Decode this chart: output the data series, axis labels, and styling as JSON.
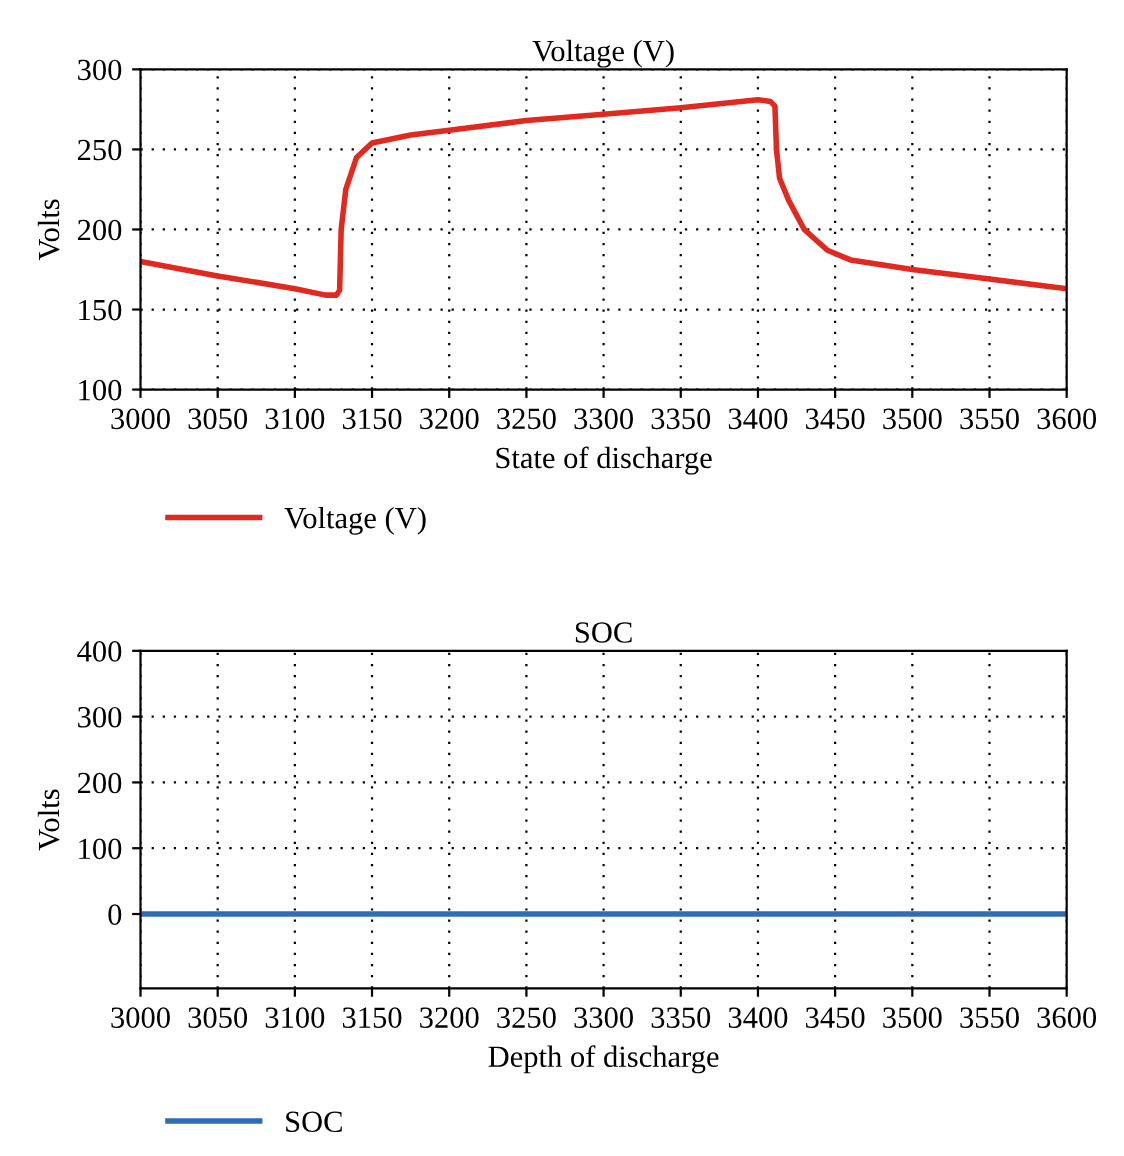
{
  "chart_data": [
    {
      "type": "line",
      "title": "Voltage (V)",
      "xlabel": "State of discharge",
      "ylabel": "Volts",
      "xlim": [
        3000,
        3600
      ],
      "xticks": [
        3000,
        3050,
        3100,
        3150,
        3200,
        3250,
        3300,
        3350,
        3400,
        3450,
        3500,
        3550,
        3600
      ],
      "ylim": [
        100,
        300
      ],
      "yticks": [
        100,
        150,
        200,
        250,
        300
      ],
      "grid": true,
      "legend": "bottom left",
      "marker": "none",
      "line_style": "solid",
      "series": [
        {
          "name": "Voltage (V)",
          "color": "#e02a1f",
          "x": [
            3000,
            3050,
            3100,
            3120,
            3127,
            3129,
            3130,
            3133,
            3140,
            3150,
            3175,
            3200,
            3250,
            3300,
            3350,
            3400,
            3408,
            3411,
            3412,
            3414,
            3420,
            3430,
            3445,
            3460,
            3500,
            3550,
            3600
          ],
          "values": [
            180,
            171,
            163,
            159,
            159,
            162,
            200,
            225,
            245,
            254,
            259,
            262,
            268,
            272,
            276,
            281,
            280,
            277,
            250,
            232,
            218,
            200,
            187,
            181,
            175,
            169,
            163
          ]
        }
      ]
    },
    {
      "type": "line",
      "title": "SOC",
      "xlabel": "Depth of discharge",
      "ylabel": "Volts",
      "xlim": [
        3000,
        3600
      ],
      "xticks": [
        3000,
        3050,
        3100,
        3150,
        3200,
        3250,
        3300,
        3350,
        3400,
        3450,
        3500,
        3550,
        3600
      ],
      "ylim": [
        -113,
        400
      ],
      "yticks": [
        0,
        100,
        200,
        300,
        400
      ],
      "grid": true,
      "legend": "bottom left",
      "marker": "none",
      "line_style": "solid",
      "series": [
        {
          "name": "SOC",
          "color": "#2f6db5",
          "x": [
            3000,
            3600
          ],
          "values": [
            0,
            0
          ]
        }
      ]
    }
  ]
}
